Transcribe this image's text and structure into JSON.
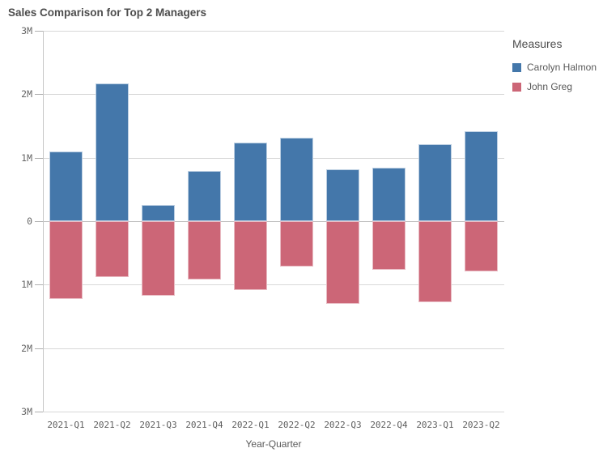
{
  "title": "Sales Comparison for Top 2 Managers",
  "legend": {
    "title": "Measures",
    "items": [
      {
        "label": "Carolyn Halmon",
        "color": "#4477aa"
      },
      {
        "label": "John Greg",
        "color": "#cc6677"
      }
    ]
  },
  "chart_data": {
    "type": "bar",
    "title": "Sales Comparison for Top 2 Managers",
    "xlabel": "Year-Quarter",
    "ylabel": "",
    "unit": "millions",
    "grid": true,
    "legend_position": "right",
    "ylim": [
      -3,
      3
    ],
    "categories": [
      "2021-Q1",
      "2021-Q2",
      "2021-Q3",
      "2021-Q4",
      "2022-Q1",
      "2022-Q2",
      "2022-Q3",
      "2022-Q4",
      "2023-Q1",
      "2023-Q2"
    ],
    "series": [
      {
        "name": "Carolyn Halmon",
        "color": "#4477aa",
        "border_color": "#bccfe2",
        "values_millions": [
          1.1,
          2.17,
          0.26,
          0.79,
          1.24,
          1.32,
          0.82,
          0.84,
          1.21,
          1.42
        ]
      },
      {
        "name": "John Greg",
        "color": "#cc6677",
        "border_color": "#e9bcc4",
        "values_millions": [
          -1.22,
          -0.88,
          -1.17,
          -0.92,
          -1.09,
          -0.72,
          -1.3,
          -0.76,
          -1.28,
          -0.79
        ]
      }
    ],
    "yticks": [
      {
        "value": 3,
        "label": "3M"
      },
      {
        "value": 2,
        "label": "2M"
      },
      {
        "value": 1,
        "label": "1M"
      },
      {
        "value": 0,
        "label": "0"
      },
      {
        "value": -1,
        "label": "1M"
      },
      {
        "value": -2,
        "label": "2M"
      },
      {
        "value": -3,
        "label": "3M"
      }
    ]
  },
  "colors": {
    "carolyn": "#4477aa",
    "john": "#cc6677",
    "gridline": "#d8d8d8",
    "zero_line": "#bdbdbd",
    "axis_line": "#c6c6c6",
    "title_text": "#4d4d4d",
    "axis_text": "#5e5e5e"
  }
}
